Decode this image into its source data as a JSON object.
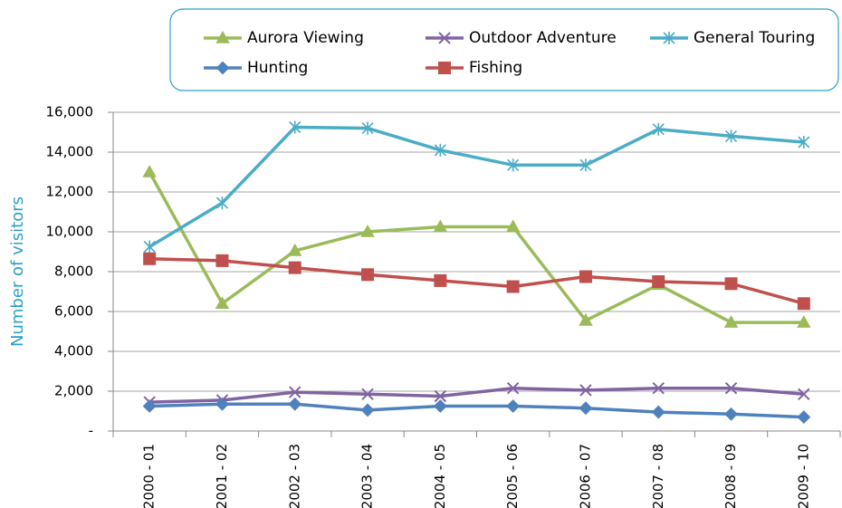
{
  "chart_data": {
    "type": "line",
    "y_label": "Number of visitors",
    "categories": [
      "2000 - 01",
      "2001 - 02",
      "2002 - 03",
      "2003 - 04",
      "2004 - 05",
      "2005 - 06",
      "2006 - 07",
      "2007 - 08",
      "2008 - 09",
      "2009 - 10"
    ],
    "series": [
      {
        "name": "Aurora Viewing",
        "color": "#9bbb59",
        "marker": "triangle",
        "values": [
          13000,
          6400,
          9050,
          10000,
          10250,
          10250,
          5550,
          7350,
          5450,
          5450
        ]
      },
      {
        "name": "Outdoor Adventure",
        "color": "#8064a2",
        "marker": "x",
        "values": [
          1450,
          1550,
          1950,
          1850,
          1750,
          2150,
          2050,
          2150,
          2150,
          1850
        ]
      },
      {
        "name": "General Touring",
        "color": "#4bacc6",
        "marker": "asterisk",
        "values": [
          9250,
          11450,
          15250,
          15200,
          14100,
          13350,
          13350,
          15150,
          14800,
          14500
        ]
      },
      {
        "name": "Hunting",
        "color": "#4f81bd",
        "marker": "diamond",
        "values": [
          1250,
          1350,
          1350,
          1050,
          1250,
          1250,
          1150,
          950,
          850,
          700
        ]
      },
      {
        "name": "Fishing",
        "color": "#c0504d",
        "marker": "square",
        "values": [
          8650,
          8550,
          8200,
          7850,
          7550,
          7250,
          7750,
          7500,
          7400,
          6400
        ]
      }
    ],
    "ylim": [
      0,
      16000
    ],
    "yticks": [
      {
        "value": 0,
        "label": "-"
      },
      {
        "value": 2000,
        "label": "2,000"
      },
      {
        "value": 4000,
        "label": "4,000"
      },
      {
        "value": 6000,
        "label": "6,000"
      },
      {
        "value": 8000,
        "label": "8,000"
      },
      {
        "value": 10000,
        "label": "10,000"
      },
      {
        "value": 12000,
        "label": "12,000"
      },
      {
        "value": 14000,
        "label": "14,000"
      },
      {
        "value": 16000,
        "label": "16,000"
      }
    ],
    "grid": true
  }
}
